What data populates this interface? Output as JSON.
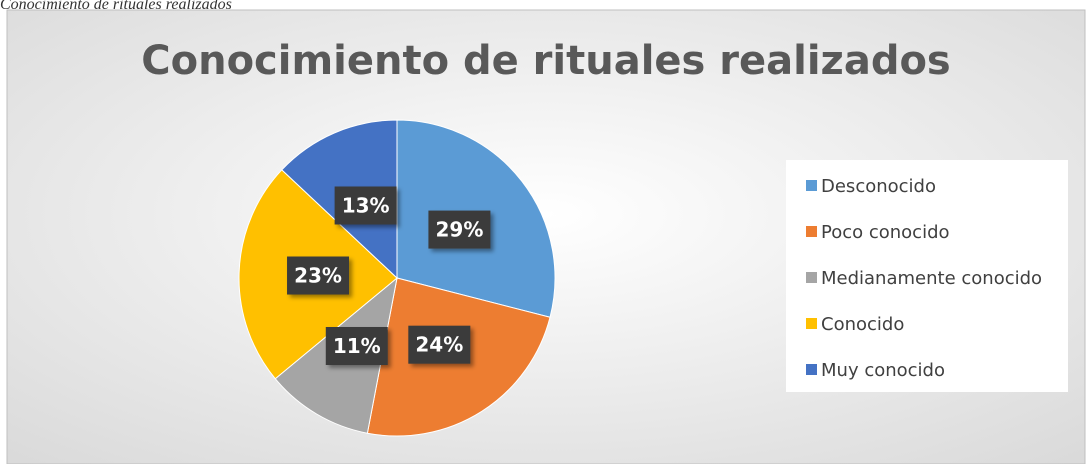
{
  "caption": "Conocimiento de rituales realizados",
  "chart_data": {
    "type": "pie",
    "title": "Conocimiento de rituales realizados",
    "categories": [
      "Desconocido",
      "Poco conocido",
      "Medianamente  conocido",
      "Conocido",
      "Muy conocido"
    ],
    "values": [
      29,
      24,
      11,
      23,
      13
    ],
    "value_labels": [
      "29%",
      "24%",
      "11%",
      "23%",
      "13%"
    ],
    "colors": [
      "#5b9bd5",
      "#ed7d31",
      "#a5a5a5",
      "#ffc000",
      "#4472c4"
    ],
    "legend": "right"
  }
}
